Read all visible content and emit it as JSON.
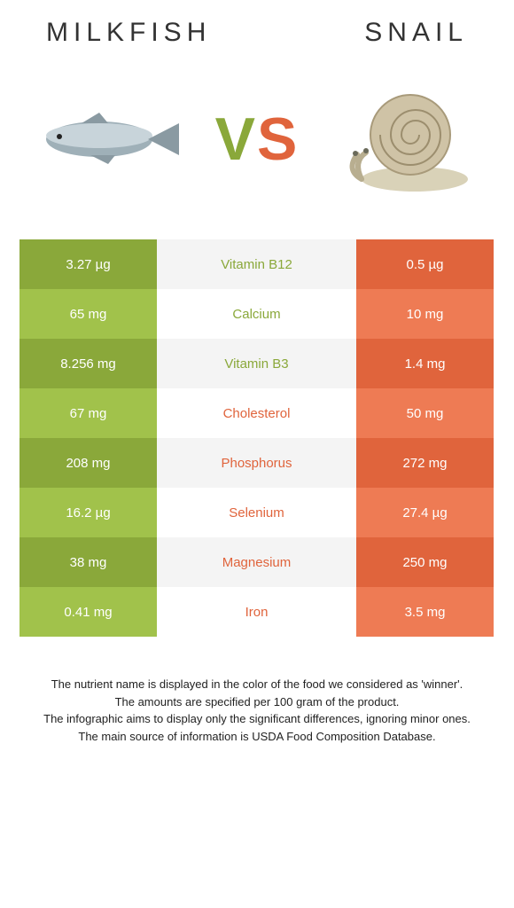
{
  "left_food": {
    "name": "Milkfish"
  },
  "right_food": {
    "name": "Snail"
  },
  "vs_label": {
    "v": "V",
    "s": "S"
  },
  "colors": {
    "green_dark": "#8aa83a",
    "green_light": "#a1c24b",
    "orange_dark": "#e0643c",
    "orange_light": "#ee7b54",
    "mid_dark": "#f4f4f4",
    "mid_light": "#ffffff",
    "label_green": "#8aa83a",
    "label_orange": "#e0643c"
  },
  "rows": [
    {
      "label": "Vitamin B12",
      "winner": "left",
      "left": "3.27 µg",
      "right": "0.5 µg"
    },
    {
      "label": "Calcium",
      "winner": "left",
      "left": "65 mg",
      "right": "10 mg"
    },
    {
      "label": "Vitamin B3",
      "winner": "left",
      "left": "8.256 mg",
      "right": "1.4 mg"
    },
    {
      "label": "Cholesterol",
      "winner": "right",
      "left": "67 mg",
      "right": "50 mg"
    },
    {
      "label": "Phosphorus",
      "winner": "right",
      "left": "208 mg",
      "right": "272 mg"
    },
    {
      "label": "Selenium",
      "winner": "right",
      "left": "16.2 µg",
      "right": "27.4 µg"
    },
    {
      "label": "Magnesium",
      "winner": "right",
      "left": "38 mg",
      "right": "250 mg"
    },
    {
      "label": "Iron",
      "winner": "right",
      "left": "0.41 mg",
      "right": "3.5 mg"
    }
  ],
  "footer": {
    "l1": "The nutrient name is displayed in the color of the food we considered as 'winner'.",
    "l2": "The amounts are specified per 100 gram of the product.",
    "l3": "The infographic aims to display only the significant differences, ignoring minor ones.",
    "l4": "The main source of information is USDA Food Composition Database."
  }
}
